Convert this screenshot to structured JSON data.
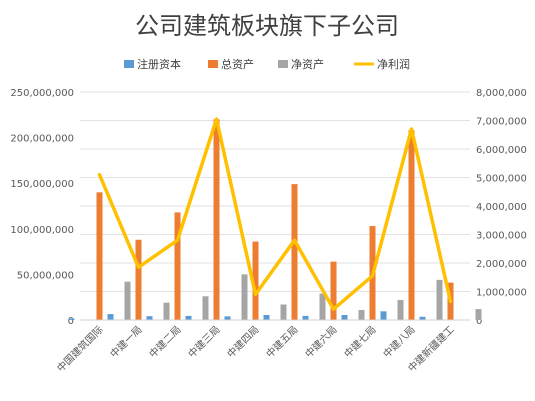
{
  "chart_data": {
    "type": "bar",
    "title": "公司建筑板块旗下子公司",
    "categories": [
      "中国建筑国际",
      "中建一局",
      "中建二局",
      "中建三局",
      "中建四局",
      "中建五局",
      "中建六局",
      "中建七局",
      "中建八局",
      "中建新疆建工"
    ],
    "series": [
      {
        "name": "注册资本",
        "axis": "left",
        "type": "bar",
        "color": "#5b9bd5",
        "values": [
          1500000,
          6500000,
          4200000,
          4500000,
          4000000,
          5500000,
          4500000,
          5500000,
          9500000,
          3500000
        ]
      },
      {
        "name": "总资产",
        "axis": "left",
        "type": "bar",
        "color": "#ed7d31",
        "values": [
          140000000,
          88000000,
          118000000,
          220000000,
          86000000,
          149000000,
          64000000,
          103000000,
          208000000,
          41000000
        ]
      },
      {
        "name": "净资产",
        "axis": "left",
        "type": "bar",
        "color": "#a5a5a5",
        "values": [
          42000000,
          19000000,
          26000000,
          50000000,
          17000000,
          29000000,
          11000000,
          22000000,
          44000000,
          12000000
        ]
      },
      {
        "name": "净利润",
        "axis": "right",
        "type": "line",
        "color": "#ffc000",
        "values": [
          5100000,
          1850000,
          2800000,
          7050000,
          900000,
          2800000,
          380000,
          1550000,
          6700000,
          650000
        ]
      }
    ],
    "y_left": {
      "min": 0,
      "max": 250000000,
      "step": 50000000,
      "tick_labels": [
        "0",
        "50,000,000",
        "100,000,000",
        "150,000,000",
        "200,000,000",
        "250,000,000"
      ]
    },
    "y_right": {
      "min": 0,
      "max": 8000000,
      "step": 1000000,
      "tick_labels": [
        "0",
        "1,000,000",
        "2,000,000",
        "3,000,000",
        "4,000,000",
        "5,000,000",
        "6,000,000",
        "7,000,000",
        "8,000,000"
      ]
    },
    "legend": {
      "position": "top-center"
    },
    "grid": true
  }
}
